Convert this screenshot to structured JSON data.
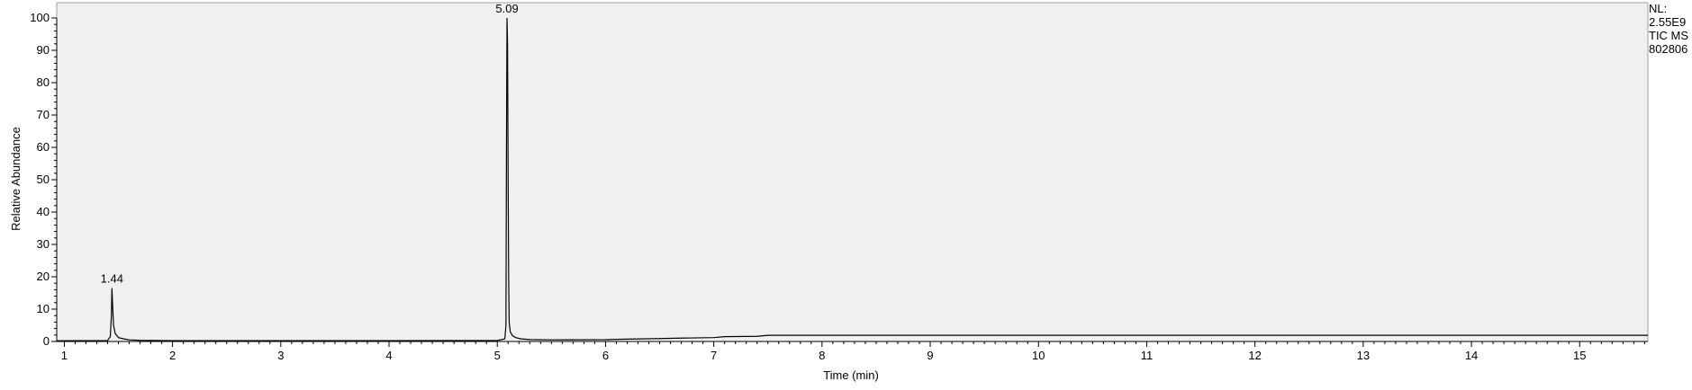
{
  "chart_data": {
    "type": "line",
    "xlabel": "Time (min)",
    "ylabel": "Relative Abundance",
    "xlim": [
      0.93,
      15.63
    ],
    "ylim": [
      0,
      100
    ],
    "x_ticks": [
      1,
      2,
      3,
      4,
      5,
      6,
      7,
      8,
      9,
      10,
      11,
      12,
      13,
      14,
      15
    ],
    "y_ticks": [
      0,
      10,
      20,
      30,
      40,
      50,
      60,
      70,
      80,
      90,
      100
    ],
    "grid": false,
    "background_color": "#f0f0f0",
    "line_color": "#000000",
    "info_lines": [
      "NL:",
      "2.55E9",
      "TIC  MS",
      "802806"
    ],
    "peaks": [
      {
        "x": 1.44,
        "y": 16.5,
        "label": "1.44"
      },
      {
        "x": 5.09,
        "y": 100,
        "label": "5.09"
      }
    ],
    "series": [
      {
        "x": [
          0.93,
          1.4,
          1.425,
          1.435,
          1.44,
          1.445,
          1.455,
          1.47,
          1.5,
          1.55,
          1.6,
          1.7,
          2.0,
          3.0,
          4.0,
          5.0,
          5.07,
          5.08,
          5.085,
          5.09,
          5.095,
          5.1,
          5.105,
          5.11,
          5.12,
          5.14,
          5.17,
          5.22,
          5.3,
          5.5,
          6.0,
          6.15,
          6.5,
          6.8,
          7.0,
          7.1,
          7.4,
          7.5,
          8.0,
          10.0,
          12.0,
          14.0,
          15.63
        ],
        "y": [
          0.2,
          0.3,
          1.5,
          8,
          16.5,
          12,
          5,
          2.5,
          1.2,
          0.8,
          0.5,
          0.35,
          0.25,
          0.25,
          0.25,
          0.3,
          0.8,
          5,
          60,
          100,
          92,
          51,
          20,
          6,
          3,
          1.8,
          1.2,
          0.8,
          0.6,
          0.5,
          0.55,
          0.7,
          0.9,
          1.1,
          1.2,
          1.5,
          1.6,
          1.9,
          1.9,
          1.9,
          1.9,
          1.9,
          1.9
        ]
      }
    ]
  }
}
